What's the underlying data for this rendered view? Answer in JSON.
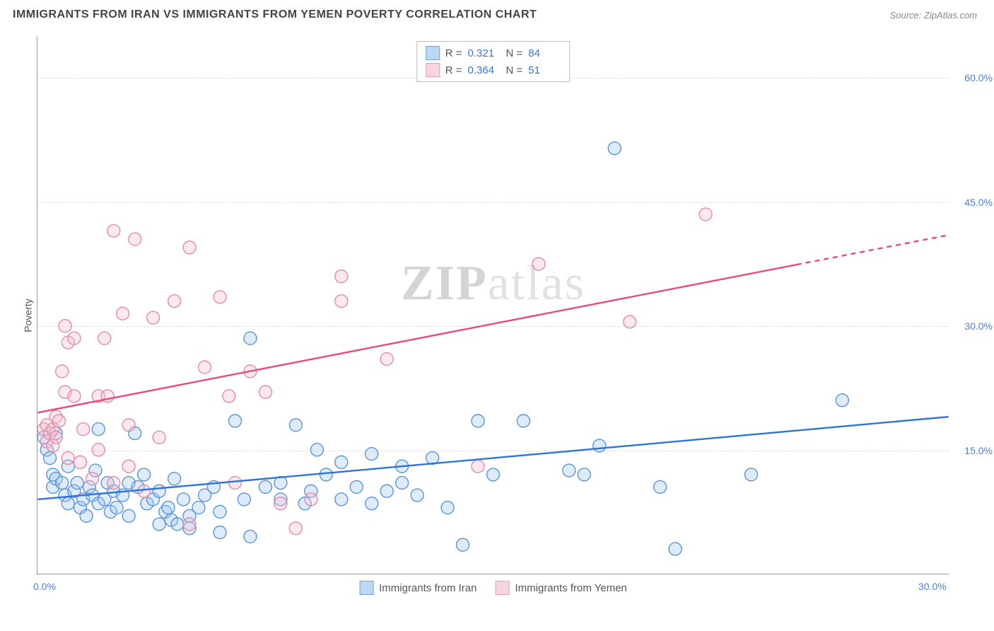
{
  "header": {
    "title": "IMMIGRANTS FROM IRAN VS IMMIGRANTS FROM YEMEN POVERTY CORRELATION CHART",
    "source": "Source: ZipAtlas.com"
  },
  "chart": {
    "type": "scatter",
    "y_axis_label": "Poverty",
    "xlim": [
      0.0,
      30.0
    ],
    "ylim": [
      0.0,
      65.0
    ],
    "x_ticks": [
      {
        "value": 0.0,
        "label": "0.0%"
      },
      {
        "value": 30.0,
        "label": "30.0%"
      }
    ],
    "y_ticks": [
      {
        "value": 15.0,
        "label": "15.0%"
      },
      {
        "value": 30.0,
        "label": "30.0%"
      },
      {
        "value": 45.0,
        "label": "45.0%"
      },
      {
        "value": 60.0,
        "label": "60.0%"
      }
    ],
    "grid_color": "#dddddd",
    "axis_color": "#999999",
    "background_color": "#ffffff",
    "marker_radius": 9,
    "series": [
      {
        "name": "Immigrants from Iran",
        "fill_color": "#9ec5f1",
        "stroke_color": "#5a94d8",
        "swatch_fill": "#bdd7f5",
        "swatch_border": "#6fa3e0",
        "r_label": "R =",
        "r_value": "0.321",
        "n_label": "N =",
        "n_value": "84",
        "trend": {
          "x1": 0.0,
          "y1": 9.0,
          "x2": 30.0,
          "y2": 19.0,
          "color": "#2d74d6",
          "width": 2.4
        },
        "points": [
          [
            0.2,
            16.5
          ],
          [
            0.3,
            15.0
          ],
          [
            0.4,
            14.0
          ],
          [
            0.5,
            12.0
          ],
          [
            0.5,
            10.5
          ],
          [
            0.6,
            17.0
          ],
          [
            0.6,
            11.5
          ],
          [
            0.8,
            11.0
          ],
          [
            0.9,
            9.5
          ],
          [
            1.0,
            8.5
          ],
          [
            1.0,
            13.0
          ],
          [
            1.2,
            10.0
          ],
          [
            1.3,
            11.0
          ],
          [
            1.4,
            8.0
          ],
          [
            1.5,
            9.0
          ],
          [
            1.6,
            7.0
          ],
          [
            1.7,
            10.5
          ],
          [
            1.8,
            9.5
          ],
          [
            1.9,
            12.5
          ],
          [
            2.0,
            8.5
          ],
          [
            2.0,
            17.5
          ],
          [
            2.2,
            9.0
          ],
          [
            2.3,
            11.0
          ],
          [
            2.4,
            7.5
          ],
          [
            2.5,
            10.0
          ],
          [
            2.6,
            8.0
          ],
          [
            2.8,
            9.5
          ],
          [
            3.0,
            11.0
          ],
          [
            3.0,
            7.0
          ],
          [
            3.2,
            17.0
          ],
          [
            3.3,
            10.5
          ],
          [
            3.5,
            12.0
          ],
          [
            3.6,
            8.5
          ],
          [
            3.8,
            9.0
          ],
          [
            4.0,
            10.0
          ],
          [
            4.0,
            6.0
          ],
          [
            4.2,
            7.5
          ],
          [
            4.3,
            8.0
          ],
          [
            4.4,
            6.5
          ],
          [
            4.5,
            11.5
          ],
          [
            4.6,
            6.0
          ],
          [
            4.8,
            9.0
          ],
          [
            5.0,
            7.0
          ],
          [
            5.0,
            5.5
          ],
          [
            5.3,
            8.0
          ],
          [
            5.5,
            9.5
          ],
          [
            5.8,
            10.5
          ],
          [
            6.0,
            7.5
          ],
          [
            6.0,
            5.0
          ],
          [
            6.5,
            18.5
          ],
          [
            6.8,
            9.0
          ],
          [
            7.0,
            28.5
          ],
          [
            7.0,
            4.5
          ],
          [
            7.5,
            10.5
          ],
          [
            8.0,
            9.0
          ],
          [
            8.0,
            11.0
          ],
          [
            8.5,
            18.0
          ],
          [
            8.8,
            8.5
          ],
          [
            9.0,
            10.0
          ],
          [
            9.2,
            15.0
          ],
          [
            9.5,
            12.0
          ],
          [
            10.0,
            13.5
          ],
          [
            10.0,
            9.0
          ],
          [
            10.5,
            10.5
          ],
          [
            11.0,
            14.5
          ],
          [
            11.0,
            8.5
          ],
          [
            11.5,
            10.0
          ],
          [
            12.0,
            13.0
          ],
          [
            12.0,
            11.0
          ],
          [
            12.5,
            9.5
          ],
          [
            13.0,
            14.0
          ],
          [
            13.5,
            8.0
          ],
          [
            14.0,
            3.5
          ],
          [
            14.5,
            18.5
          ],
          [
            15.0,
            12.0
          ],
          [
            16.0,
            18.5
          ],
          [
            17.5,
            12.5
          ],
          [
            18.0,
            12.0
          ],
          [
            18.5,
            15.5
          ],
          [
            19.0,
            51.5
          ],
          [
            20.5,
            10.5
          ],
          [
            21.0,
            3.0
          ],
          [
            23.5,
            12.0
          ],
          [
            26.5,
            21.0
          ]
        ]
      },
      {
        "name": "Immigrants from Yemen",
        "fill_color": "#f4c0d0",
        "stroke_color": "#e38aa8",
        "swatch_fill": "#f8d4e0",
        "swatch_border": "#eb9cb8",
        "r_label": "R =",
        "r_value": "0.364",
        "n_label": "N =",
        "n_value": "51",
        "trend": {
          "x1": 0.0,
          "y1": 19.5,
          "x2": 30.0,
          "y2": 41.0,
          "color": "#e84a7f",
          "width": 2.4,
          "dash_after_x": 25.0
        },
        "points": [
          [
            0.2,
            17.5
          ],
          [
            0.3,
            16.0
          ],
          [
            0.3,
            18.0
          ],
          [
            0.4,
            17.0
          ],
          [
            0.5,
            15.5
          ],
          [
            0.5,
            17.5
          ],
          [
            0.6,
            19.0
          ],
          [
            0.6,
            16.5
          ],
          [
            0.7,
            18.5
          ],
          [
            0.8,
            24.5
          ],
          [
            0.9,
            22.0
          ],
          [
            0.9,
            30.0
          ],
          [
            1.0,
            28.0
          ],
          [
            1.0,
            14.0
          ],
          [
            1.2,
            21.5
          ],
          [
            1.2,
            28.5
          ],
          [
            1.4,
            13.5
          ],
          [
            1.5,
            17.5
          ],
          [
            1.8,
            11.5
          ],
          [
            2.0,
            21.5
          ],
          [
            2.0,
            15.0
          ],
          [
            2.2,
            28.5
          ],
          [
            2.3,
            21.5
          ],
          [
            2.5,
            11.0
          ],
          [
            2.5,
            41.5
          ],
          [
            2.8,
            31.5
          ],
          [
            3.0,
            13.0
          ],
          [
            3.0,
            18.0
          ],
          [
            3.2,
            40.5
          ],
          [
            3.5,
            10.0
          ],
          [
            3.8,
            31.0
          ],
          [
            4.0,
            16.5
          ],
          [
            4.5,
            33.0
          ],
          [
            5.0,
            39.5
          ],
          [
            5.0,
            6.0
          ],
          [
            5.5,
            25.0
          ],
          [
            6.0,
            33.5
          ],
          [
            6.3,
            21.5
          ],
          [
            6.5,
            11.0
          ],
          [
            7.0,
            24.5
          ],
          [
            7.5,
            22.0
          ],
          [
            8.0,
            8.5
          ],
          [
            8.5,
            5.5
          ],
          [
            9.0,
            9.0
          ],
          [
            10.0,
            33.0
          ],
          [
            10.0,
            36.0
          ],
          [
            11.5,
            26.0
          ],
          [
            14.5,
            13.0
          ],
          [
            16.5,
            37.5
          ],
          [
            19.5,
            30.5
          ],
          [
            22.0,
            43.5
          ]
        ]
      }
    ],
    "watermark": {
      "text_bold": "ZIP",
      "text_light": "atlas"
    },
    "legend_bottom": [
      {
        "label": "Immigrants from Iran",
        "swatch_fill": "#bdd7f5",
        "swatch_border": "#6fa3e0"
      },
      {
        "label": "Immigrants from Yemen",
        "swatch_fill": "#f8d4e0",
        "swatch_border": "#eb9cb8"
      }
    ]
  }
}
